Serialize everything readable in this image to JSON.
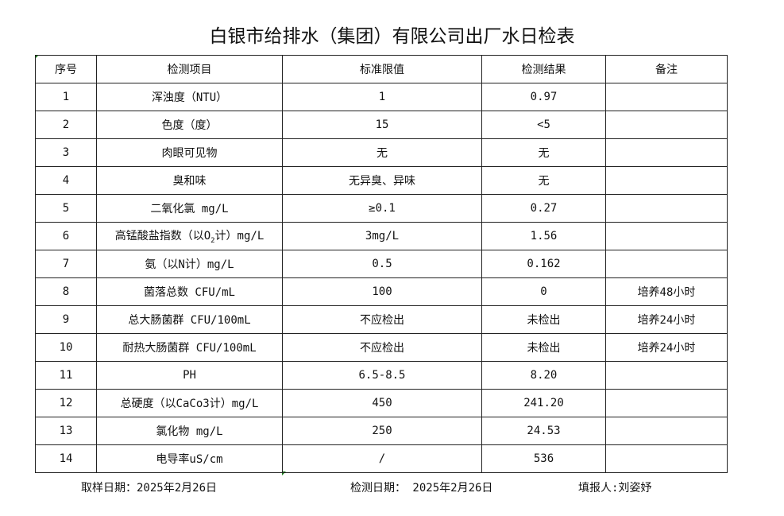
{
  "title": "白银市给排水（集团）有限公司出厂水日检表",
  "headers": [
    "序号",
    "检测项目",
    "标准限值",
    "检测结果",
    "备注"
  ],
  "rows": [
    {
      "no": "1",
      "item": "浑浊度（NTU）",
      "sub": "",
      "item_suffix": "",
      "limit": "1",
      "result": "0.97",
      "note": ""
    },
    {
      "no": "2",
      "item": "色度（度）",
      "sub": "",
      "item_suffix": "",
      "limit": "15",
      "result": "<5",
      "note": ""
    },
    {
      "no": "3",
      "item": "肉眼可见物",
      "sub": "",
      "item_suffix": "",
      "limit": "无",
      "result": "无",
      "note": ""
    },
    {
      "no": "4",
      "item": "臭和味",
      "sub": "",
      "item_suffix": "",
      "limit": "无异臭、异味",
      "result": "无",
      "note": ""
    },
    {
      "no": "5",
      "item": "二氧化氯 mg/L",
      "sub": "",
      "item_suffix": "",
      "limit": "≥0.1",
      "result": "0.27",
      "note": ""
    },
    {
      "no": "6",
      "item": "高锰酸盐指数（以O",
      "sub": "2",
      "item_suffix": "计）mg/L",
      "limit": "3mg/L",
      "result": "1.56",
      "note": ""
    },
    {
      "no": "7",
      "item": "氨（以N计）mg/L",
      "sub": "",
      "item_suffix": "",
      "limit": "0.5",
      "result": "0.162",
      "note": ""
    },
    {
      "no": "8",
      "item": "菌落总数 CFU/mL",
      "sub": "",
      "item_suffix": "",
      "limit": "100",
      "result": "0",
      "note": "培养48小时"
    },
    {
      "no": "9",
      "item": "总大肠菌群 CFU/100mL",
      "sub": "",
      "item_suffix": "",
      "limit": "不应检出",
      "result": "未检出",
      "note": "培养24小时"
    },
    {
      "no": "10",
      "item": "耐热大肠菌群 CFU/100mL",
      "sub": "",
      "item_suffix": "",
      "limit": "不应检出",
      "result": "未检出",
      "note": "培养24小时"
    },
    {
      "no": "11",
      "item": "PH",
      "sub": "",
      "item_suffix": "",
      "limit": "6.5-8.5",
      "result": "8.20",
      "note": ""
    },
    {
      "no": "12",
      "item": "总硬度（以CaCo3计）mg/L",
      "sub": "",
      "item_suffix": "",
      "limit": "450",
      "result": "241.20",
      "note": ""
    },
    {
      "no": "13",
      "item": "氯化物 mg/L",
      "sub": "",
      "item_suffix": "",
      "limit": "250",
      "result": "24.53",
      "note": ""
    },
    {
      "no": "14",
      "item": "电导率uS/cm",
      "sub": "",
      "item_suffix": "",
      "limit": "/",
      "result": "536",
      "note": ""
    }
  ],
  "footer": {
    "sample_date": "取样日期：2025年2月26日",
    "test_date": "检测日期： 2025年2月26日",
    "reporter": "填报人:刘姿妤"
  },
  "colors": {
    "cell_marker": "#1a7f1a",
    "border": "#222222"
  }
}
